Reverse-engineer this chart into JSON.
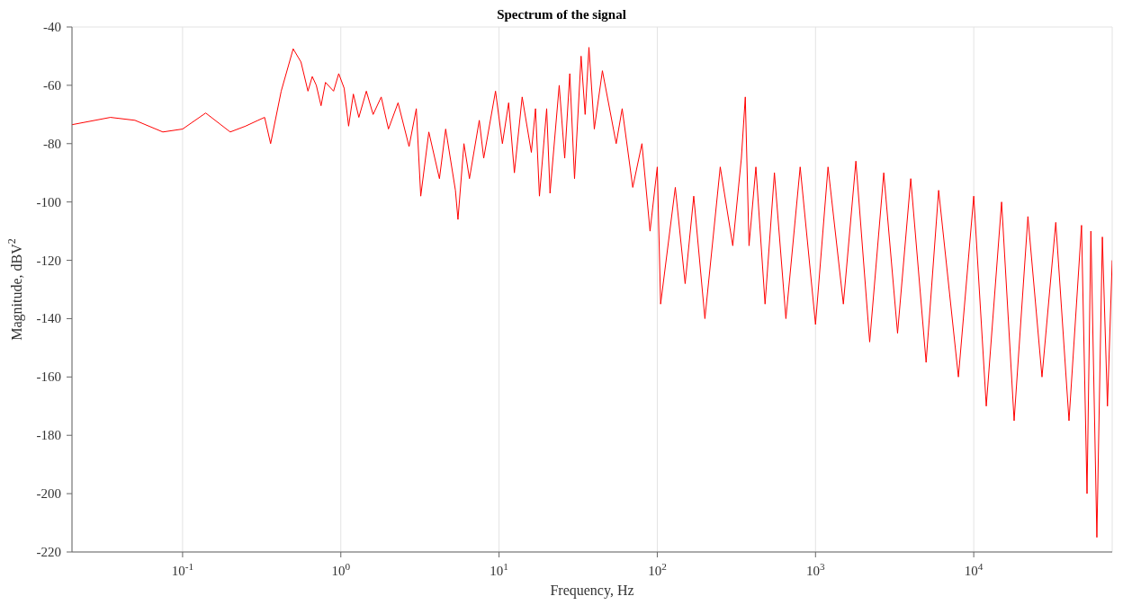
{
  "chart_data": {
    "type": "line",
    "title": "Spectrum of the signal",
    "xlabel": "Frequency, Hz",
    "ylabel": "Magnitude, dBV$^{2}$",
    "log": "x",
    "grid": true,
    "marker": "none",
    "line_style": "solid",
    "xlim": [
      0.02,
      75000
    ],
    "xticks": [
      {
        "value": 0.1,
        "label": "10$^{-1}$"
      },
      {
        "value": 1,
        "label": "10$^{0}$"
      },
      {
        "value": 10,
        "label": "10$^{1}$"
      },
      {
        "value": 100,
        "label": "10$^{2}$"
      },
      {
        "value": 1000,
        "label": "10$^{3}$"
      },
      {
        "value": 10000,
        "label": "10$^{4}$"
      }
    ],
    "ylim": [
      -220,
      -40
    ],
    "yticks": [
      -220,
      -200,
      -180,
      -160,
      -140,
      -120,
      -100,
      -80,
      -60,
      -40
    ],
    "x": [
      0.02,
      0.035,
      0.05,
      0.075,
      0.1,
      0.14,
      0.2,
      0.25,
      0.3,
      0.33,
      0.36,
      0.42,
      0.5,
      0.56,
      0.62,
      0.66,
      0.7,
      0.75,
      0.8,
      0.9,
      0.97,
      1.05,
      1.12,
      1.2,
      1.3,
      1.45,
      1.6,
      1.8,
      2,
      2.3,
      2.7,
      3,
      3.2,
      3.6,
      4.2,
      4.6,
      5.3,
      5.5,
      6,
      6.5,
      7.5,
      8,
      9.5,
      10.5,
      11.5,
      12.5,
      14,
      16,
      17,
      18,
      20,
      21,
      24,
      26,
      28,
      30,
      33,
      35,
      37,
      40,
      45,
      55,
      60,
      70,
      80,
      90,
      100,
      105,
      130,
      150,
      170,
      200,
      250,
      300,
      340,
      360,
      380,
      420,
      480,
      550,
      650,
      800,
      1000,
      1200,
      1500,
      1800,
      2200,
      2700,
      3300,
      4000,
      5000,
      6000,
      8000,
      10000,
      12000,
      15000,
      18000,
      22000,
      27000,
      33000,
      40000,
      48000,
      52000,
      55000,
      60000,
      65000,
      70000,
      75000
    ],
    "series": [
      {
        "color": "#ff0000",
        "values": [
          -73.5,
          -71,
          -72,
          -76,
          -75,
          -69.5,
          -76,
          -74,
          -72,
          -71,
          -80,
          -62,
          -47.5,
          -52,
          -62,
          -57,
          -60,
          -67,
          -59,
          -62,
          -56,
          -61,
          -74,
          -63,
          -71,
          -62,
          -70,
          -64,
          -75,
          -66,
          -81,
          -68,
          -98,
          -76,
          -92,
          -75,
          -96,
          -106,
          -80,
          -92,
          -72,
          -85,
          -62,
          -80,
          -66,
          -90,
          -64,
          -83,
          -68,
          -98,
          -68,
          -97,
          -60,
          -85,
          -56,
          -92,
          -50,
          -70,
          -47,
          -75,
          -55,
          -80,
          -68,
          -95,
          -80,
          -110,
          -88,
          -135,
          -95,
          -128,
          -98,
          -140,
          -88,
          -115,
          -85,
          -64,
          -115,
          -88,
          -135,
          -90,
          -140,
          -88,
          -142,
          -88,
          -135,
          -86,
          -148,
          -90,
          -145,
          -92,
          -155,
          -96,
          -160,
          -98,
          -170,
          -100,
          -175,
          -105,
          -160,
          -107,
          -175,
          -108,
          -200,
          -110,
          -215,
          -112,
          -170,
          -120
        ]
      }
    ]
  }
}
